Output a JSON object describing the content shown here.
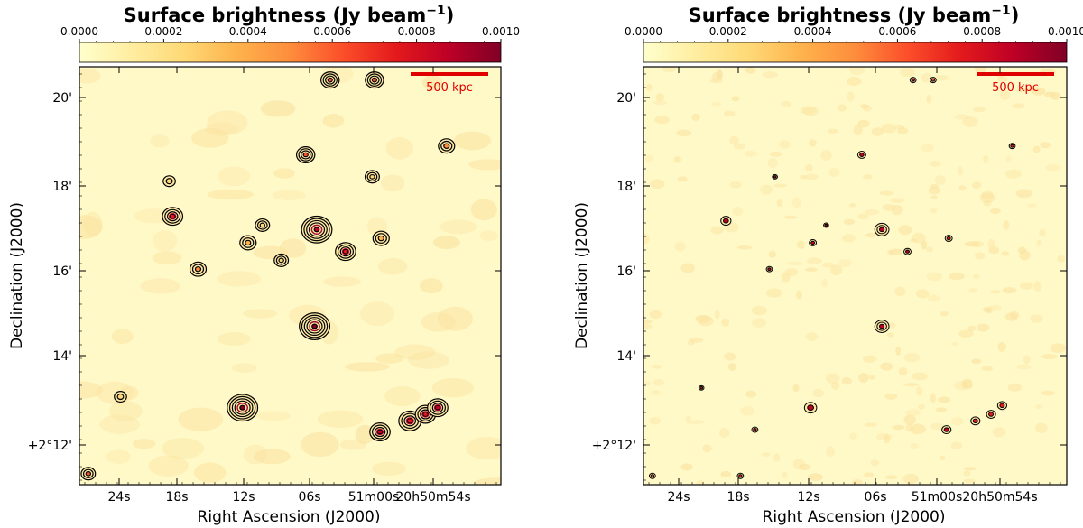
{
  "chart_data": [
    {
      "type": "heatmap",
      "title": "Surface brightness (Jy beam",
      "title_superscript": "−1",
      "title_suffix": ")",
      "colorbar": {
        "min": 0.0,
        "max": 0.001,
        "tick_labels": [
          "0.0000",
          "0.0002",
          "0.0004",
          "0.0006",
          "0.0008",
          "0.0010"
        ],
        "colormap": [
          "#ffffcc",
          "#ffeda0",
          "#fed976",
          "#feb24c",
          "#fd8d3c",
          "#fc4e2a",
          "#e31a1c",
          "#bd0026",
          "#800026"
        ]
      },
      "xlabel": "Right Ascension (J2000)",
      "ylabel": "Declination (J2000)",
      "xtick_labels": [
        "24s",
        "18s",
        "12s",
        "06s",
        "51m00s",
        "20h50m54s"
      ],
      "ytick_labels": [
        "20'",
        "18'",
        "16'",
        "14'",
        "+2°12'"
      ],
      "ra_range_s": [
        27,
        49
      ],
      "dec_range_arcmin": [
        11.2,
        20.7
      ],
      "scale_bar": "500 kpc",
      "background_color": "#fff9c8",
      "sources": [
        {
          "ra_s": 5.6,
          "dec_arcmin": 17.0,
          "level": 0.0009,
          "size": 1.5
        },
        {
          "ra_s": 5.8,
          "dec_arcmin": 14.8,
          "level": 0.001,
          "size": 1.5
        },
        {
          "ra_s": 12.3,
          "dec_arcmin": 12.95,
          "level": 0.001,
          "size": 1.5
        },
        {
          "ra_s": 18.6,
          "dec_arcmin": 17.3,
          "level": 0.0008,
          "size": 1.0
        },
        {
          "ra_s": 57.2,
          "dec_arcmin": 12.65,
          "level": 0.0008,
          "size": 1.1
        },
        {
          "ra_s": 55.8,
          "dec_arcmin": 12.8,
          "level": 0.0008,
          "size": 1.0
        },
        {
          "ra_s": 54.7,
          "dec_arcmin": 12.95,
          "level": 0.0009,
          "size": 1.0
        },
        {
          "ra_s": 59.9,
          "dec_arcmin": 12.4,
          "level": 0.0009,
          "size": 1.0
        },
        {
          "ra_s": 3.0,
          "dec_arcmin": 16.5,
          "level": 0.0008,
          "size": 1.0
        },
        {
          "ra_s": 4.4,
          "dec_arcmin": 20.4,
          "level": 0.0006,
          "size": 0.9
        },
        {
          "ra_s": 0.4,
          "dec_arcmin": 20.4,
          "level": 0.0006,
          "size": 0.9
        },
        {
          "ra_s": 6.6,
          "dec_arcmin": 18.7,
          "level": 0.0006,
          "size": 0.9
        },
        {
          "ra_s": 53.9,
          "dec_arcmin": 18.9,
          "level": 0.0005,
          "size": 0.8
        },
        {
          "ra_s": 16.3,
          "dec_arcmin": 16.1,
          "level": 0.0005,
          "size": 0.8
        },
        {
          "ra_s": 11.8,
          "dec_arcmin": 16.7,
          "level": 0.0004,
          "size": 0.8
        },
        {
          "ra_s": 59.8,
          "dec_arcmin": 16.8,
          "level": 0.0004,
          "size": 0.8
        },
        {
          "ra_s": 10.5,
          "dec_arcmin": 17.1,
          "level": 0.0003,
          "size": 0.7
        },
        {
          "ra_s": 0.6,
          "dec_arcmin": 18.2,
          "level": 0.0003,
          "size": 0.7
        },
        {
          "ra_s": 8.8,
          "dec_arcmin": 16.3,
          "level": 0.0003,
          "size": 0.7
        },
        {
          "ra_s": 23.3,
          "dec_arcmin": 13.2,
          "level": 0.0003,
          "size": 0.6
        },
        {
          "ra_s": 18.9,
          "dec_arcmin": 18.1,
          "level": 0.0003,
          "size": 0.6
        },
        {
          "ra_s": 26.2,
          "dec_arcmin": 11.45,
          "level": 0.0006,
          "size": 0.7
        }
      ]
    },
    {
      "type": "heatmap",
      "title": "Surface brightness (Jy beam",
      "title_superscript": "−1",
      "title_suffix": ")",
      "colorbar": {
        "min": 0.0,
        "max": 0.001,
        "tick_labels": [
          "0.0000",
          "0.0002",
          "0.0004",
          "0.0006",
          "0.0008",
          "0.0010"
        ],
        "colormap": [
          "#ffffcc",
          "#ffeda0",
          "#fed976",
          "#feb24c",
          "#fd8d3c",
          "#fc4e2a",
          "#e31a1c",
          "#bd0026",
          "#800026"
        ]
      },
      "xlabel": "Right Ascension (J2000)",
      "ylabel": "Declination (J2000)",
      "xtick_labels": [
        "24s",
        "18s",
        "12s",
        "06s",
        "51m00s",
        "20h50m54s"
      ],
      "ytick_labels": [
        "20'",
        "18'",
        "16'",
        "14'",
        "+2°12'"
      ],
      "ra_range_s": [
        27,
        49
      ],
      "dec_range_arcmin": [
        11.2,
        20.7
      ],
      "scale_bar": "500 kpc",
      "background_color": "#fff9c8",
      "sources": [
        {
          "ra_s": 5.6,
          "dec_arcmin": 17.0,
          "level": 0.0009,
          "size": 0.7
        },
        {
          "ra_s": 5.6,
          "dec_arcmin": 14.8,
          "level": 0.0009,
          "size": 0.7
        },
        {
          "ra_s": 12.0,
          "dec_arcmin": 12.95,
          "level": 0.0009,
          "size": 0.6
        },
        {
          "ra_s": 19.6,
          "dec_arcmin": 17.2,
          "level": 0.0009,
          "size": 0.5
        },
        {
          "ra_s": 7.4,
          "dec_arcmin": 18.7,
          "level": 0.0009,
          "size": 0.4
        },
        {
          "ra_s": 57.2,
          "dec_arcmin": 12.65,
          "level": 0.0008,
          "size": 0.45
        },
        {
          "ra_s": 55.8,
          "dec_arcmin": 12.8,
          "level": 0.0008,
          "size": 0.45
        },
        {
          "ra_s": 54.8,
          "dec_arcmin": 13.0,
          "level": 0.0008,
          "size": 0.45
        },
        {
          "ra_s": 59.8,
          "dec_arcmin": 12.45,
          "level": 0.0009,
          "size": 0.45
        },
        {
          "ra_s": 3.3,
          "dec_arcmin": 16.5,
          "level": 0.0009,
          "size": 0.35
        },
        {
          "ra_s": 11.8,
          "dec_arcmin": 16.7,
          "level": 0.0009,
          "size": 0.35
        },
        {
          "ra_s": 59.6,
          "dec_arcmin": 16.8,
          "level": 0.0007,
          "size": 0.35
        },
        {
          "ra_s": 15.7,
          "dec_arcmin": 16.1,
          "level": 0.0009,
          "size": 0.3
        },
        {
          "ra_s": 2.8,
          "dec_arcmin": 20.4,
          "level": 0.0009,
          "size": 0.3
        },
        {
          "ra_s": 1.0,
          "dec_arcmin": 20.4,
          "level": 0.0006,
          "size": 0.3
        },
        {
          "ra_s": 53.9,
          "dec_arcmin": 18.9,
          "level": 0.0007,
          "size": 0.3
        },
        {
          "ra_s": 17.0,
          "dec_arcmin": 12.45,
          "level": 0.0009,
          "size": 0.3
        },
        {
          "ra_s": 10.6,
          "dec_arcmin": 17.1,
          "level": 0.0009,
          "size": 0.25
        },
        {
          "ra_s": 18.3,
          "dec_arcmin": 11.4,
          "level": 0.0008,
          "size": 0.3
        },
        {
          "ra_s": 15.2,
          "dec_arcmin": 18.2,
          "level": 0.0009,
          "size": 0.25
        },
        {
          "ra_s": 21.8,
          "dec_arcmin": 13.4,
          "level": 0.0008,
          "size": 0.25
        },
        {
          "ra_s": 26.2,
          "dec_arcmin": 11.4,
          "level": 0.0006,
          "size": 0.3
        }
      ]
    }
  ]
}
